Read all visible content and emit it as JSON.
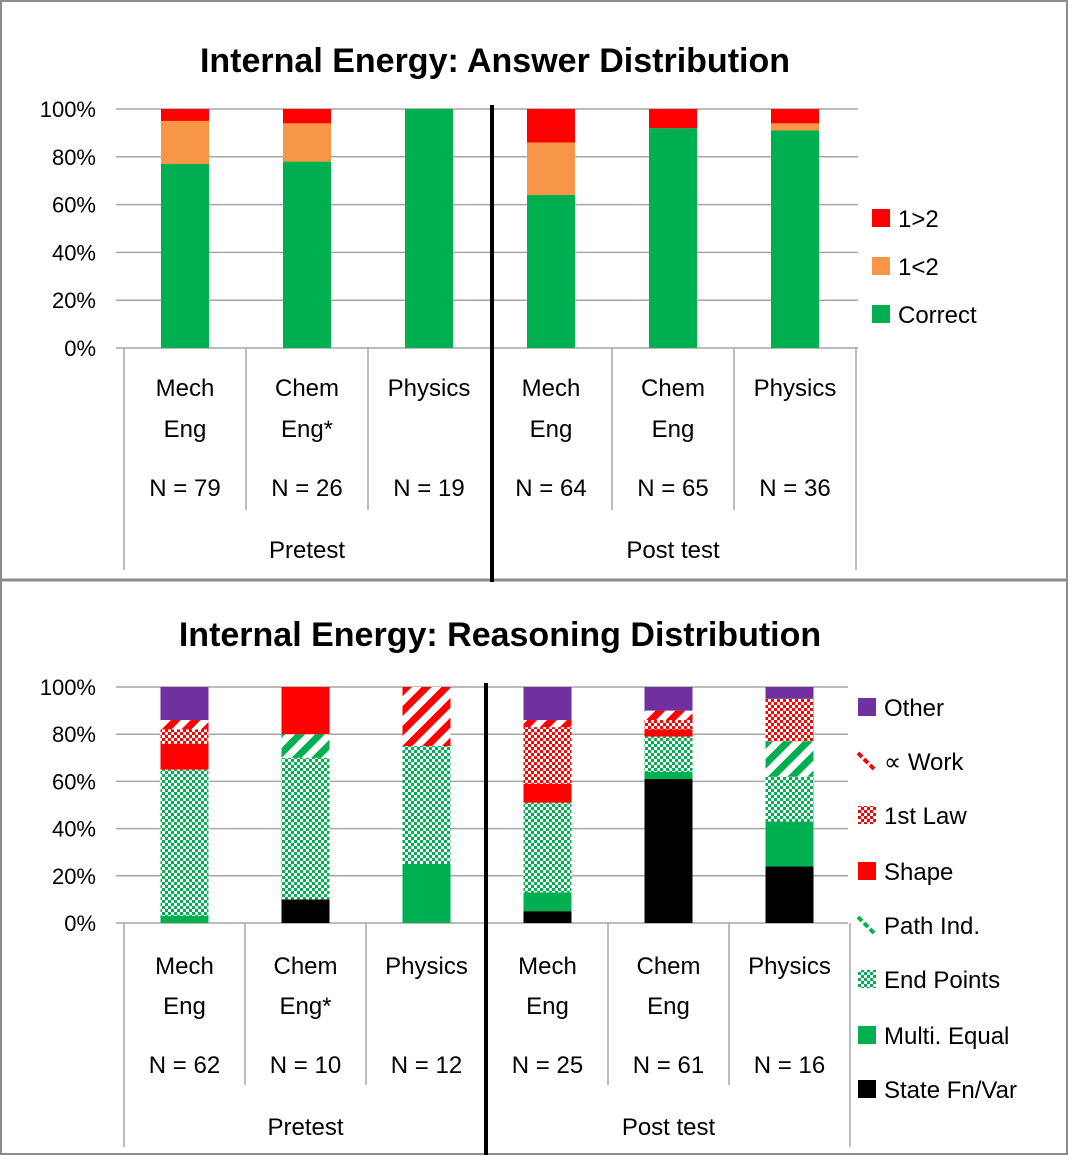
{
  "charts": [
    {
      "type": "bar",
      "stacked": true,
      "title": "Internal Energy: Answer Distribution",
      "ylim": [
        0,
        100
      ],
      "yticks": [
        "0%",
        "20%",
        "40%",
        "60%",
        "80%",
        "100%"
      ],
      "groups": [
        {
          "label": "Pretest",
          "categories": [
            {
              "line1": "Mech",
              "line2": "Eng",
              "n": "N = 79"
            },
            {
              "line1": "Chem",
              "line2": "Eng*",
              "n": "N = 26"
            },
            {
              "line1": "Physics",
              "line2": "",
              "n": "N = 19"
            }
          ]
        },
        {
          "label": "Post test",
          "categories": [
            {
              "line1": "Mech",
              "line2": "Eng",
              "n": "N = 64"
            },
            {
              "line1": "Chem",
              "line2": "Eng",
              "n": "N = 65"
            },
            {
              "line1": "Physics",
              "line2": "",
              "n": "N = 36"
            }
          ]
        }
      ],
      "series": [
        {
          "name": "Correct",
          "color": "#00b050",
          "pattern": "solid",
          "values": [
            77,
            78,
            100,
            64,
            92,
            91
          ]
        },
        {
          "name": "1<2",
          "color": "#f79646",
          "pattern": "solid",
          "values": [
            18,
            16,
            0,
            22,
            0,
            3
          ]
        },
        {
          "name": "1>2",
          "color": "#ff0000",
          "pattern": "solid",
          "values": [
            5,
            6,
            0,
            14,
            8,
            6
          ]
        }
      ],
      "legend_order": [
        "1>2",
        "1<2",
        "Correct"
      ],
      "legend_position": "right"
    },
    {
      "type": "bar",
      "stacked": true,
      "title": "Internal Energy: Reasoning Distribution",
      "ylim": [
        0,
        100
      ],
      "yticks": [
        "0%",
        "20%",
        "40%",
        "60%",
        "80%",
        "100%"
      ],
      "groups": [
        {
          "label": "Pretest",
          "categories": [
            {
              "line1": "Mech",
              "line2": "Eng",
              "n": "N = 62"
            },
            {
              "line1": "Chem",
              "line2": "Eng*",
              "n": "N = 10"
            },
            {
              "line1": "Physics",
              "line2": "",
              "n": "N = 12"
            }
          ]
        },
        {
          "label": "Post test",
          "categories": [
            {
              "line1": "Mech",
              "line2": "Eng",
              "n": "N = 25"
            },
            {
              "line1": "Chem",
              "line2": "Eng",
              "n": "N = 61"
            },
            {
              "line1": "Physics",
              "line2": "",
              "n": "N = 16"
            }
          ]
        }
      ],
      "series": [
        {
          "name": "State Fn/Var",
          "color": "#000000",
          "pattern": "solid",
          "values": [
            0,
            10,
            0,
            5,
            61,
            24
          ]
        },
        {
          "name": "Multi. Equal",
          "color": "#00b050",
          "pattern": "solid",
          "values": [
            3,
            0,
            25,
            8,
            3,
            19
          ]
        },
        {
          "name": "End Points",
          "color": "#00b050",
          "pattern": "checker",
          "values": [
            62,
            60,
            50,
            38,
            15,
            19
          ]
        },
        {
          "name": "Path Ind.",
          "color": "#00b050",
          "pattern": "diagonal",
          "values": [
            0,
            10,
            0,
            0,
            0,
            15
          ]
        },
        {
          "name": "Shape",
          "color": "#ff0000",
          "pattern": "solid",
          "values": [
            11,
            20,
            0,
            8,
            3,
            0
          ]
        },
        {
          "name": "1st Law",
          "color": "#ff0000",
          "pattern": "checker",
          "values": [
            6,
            0,
            0,
            24,
            4,
            18
          ]
        },
        {
          "name": "∝ Work",
          "color": "#ff0000",
          "pattern": "diagonal",
          "values": [
            4,
            0,
            25,
            3,
            4,
            0
          ]
        },
        {
          "name": "Other",
          "color": "#7030a0",
          "pattern": "solid",
          "values": [
            14,
            0,
            0,
            14,
            10,
            5
          ]
        }
      ],
      "legend_order": [
        "Other",
        "∝ Work",
        "1st Law",
        "Shape",
        "Path Ind.",
        "End Points",
        "Multi. Equal",
        "State Fn/Var"
      ],
      "legend_position": "right"
    }
  ]
}
